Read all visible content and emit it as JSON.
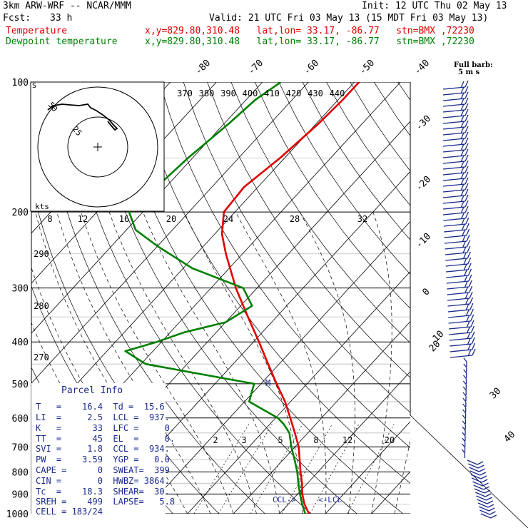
{
  "header": {
    "model": "3km ARW-WRF -- NCAR/MMM",
    "init": "Init: 12 UTC Thu 02 May 13",
    "fcst_label": "Fcst:",
    "fcst_value": "33 h",
    "valid": "Valid: 21 UTC Fri 03 May 13 (15 MDT Fri 03 May 13)",
    "temp_label": "Temperature",
    "temp_info": "x,y=829.80,310.48   lat,lon= 33.17, -86.77   stn=BMX ,72230",
    "dew_label": "Dewpoint temperature",
    "dew_info": "x,y=829.80,310.48   lat,lon= 33.17, -86.77   stn=BMX ,72230",
    "barb_title": "Full barb:",
    "barb_unit": "5 m s"
  },
  "parcel": {
    "title": "Parcel Info",
    "rows": [
      "T   =    16.4  Td =  15.6",
      "LI  =     2.5  LCL =  937.",
      "K   =      33  LFC =     0.",
      "TT  =      45  EL  =     0.",
      "SVI =     1.8  CCL =  934.",
      "PW  =    3.59  YGP =   0.0",
      "CAPE =      0  SWEAT=  399",
      "CIN =       0  HWBZ= 3864.",
      "Tc  =    18.3  SHEAR=  30.",
      "SREH =    499  LAPSE=   5.8",
      "CELL = 183/24"
    ]
  },
  "chart_data": {
    "type": "line",
    "title": "",
    "pressure_levels": [
      100,
      200,
      300,
      400,
      500,
      600,
      700,
      800,
      900,
      1000
    ],
    "isotherm_labels": [
      "-80",
      "-70",
      "-60",
      "-50",
      "-40",
      "-30",
      "-20",
      "-10",
      "0",
      "10",
      "20",
      "30",
      "40"
    ],
    "theta_labels": [
      "370",
      "380",
      "390",
      "400",
      "410",
      "420",
      "430",
      "440"
    ],
    "mixing_ratio_labels": [
      "2",
      "3",
      "5",
      "8",
      "12",
      "20"
    ],
    "hodograph_speed_labels": [
      "12",
      "16",
      "20",
      "24",
      "28",
      "32"
    ],
    "hodograph_ring_labels": [
      "25",
      "50"
    ],
    "hodograph_left_labels": [
      "290",
      "280",
      "270"
    ],
    "hodograph_kts_label": "kts",
    "hodograph_origin_label": "8",
    "marker_labels": {
      "m": "M",
      "ccl": "CCL->",
      "lcl": "<-LCL",
      "s": "S"
    },
    "series": [
      {
        "name": "Temperature",
        "color": "#e00000",
        "p": [
          1000,
          950,
          900,
          850,
          800,
          750,
          700,
          650,
          600,
          550,
          500,
          450,
          400,
          350,
          300,
          250,
          225,
          200,
          175,
          150,
          125,
          110,
          100
        ],
        "t": [
          16.4,
          13.5,
          11.0,
          8.8,
          6.2,
          3.6,
          0.8,
          -2.8,
          -6.8,
          -11.2,
          -16.6,
          -22.4,
          -28.8,
          -36.2,
          -44.6,
          -53.6,
          -58.4,
          -62.4,
          -63.0,
          -61.0,
          -59.5,
          -59.0,
          -59.0
        ]
      },
      {
        "name": "Dewpoint temperature",
        "color": "#008000",
        "p": [
          1000,
          950,
          900,
          850,
          800,
          750,
          700,
          650,
          620,
          600,
          550,
          500,
          450,
          420,
          400,
          380,
          360,
          330,
          300,
          270,
          240,
          220,
          200,
          175,
          150,
          125,
          110,
          100
        ],
        "t": [
          15.6,
          13.0,
          10.5,
          8.0,
          5.5,
          2.5,
          -0.8,
          -4.0,
          -7.0,
          -9.5,
          -19.0,
          -21.5,
          -49.0,
          -56.0,
          -51.0,
          -47.0,
          -40.0,
          -37.5,
          -43.0,
          -58.0,
          -70.0,
          -78.0,
          -83.0,
          -82.0,
          -81.0,
          -79.0,
          -78.0,
          -76.0
        ]
      }
    ],
    "colors": {
      "temperature": "#e00000",
      "dewpoint": "#008000",
      "wind": "#1a2a8c",
      "parcel_text": "#1a2a8c"
    }
  }
}
